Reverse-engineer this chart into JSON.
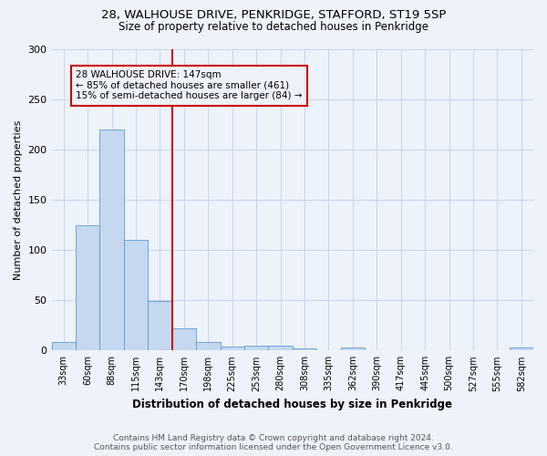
{
  "title_line1": "28, WALHOUSE DRIVE, PENKRIDGE, STAFFORD, ST19 5SP",
  "title_line2": "Size of property relative to detached houses in Penkridge",
  "xlabel": "Distribution of detached houses by size in Penkridge",
  "ylabel": "Number of detached properties",
  "bin_labels": [
    "33sqm",
    "60sqm",
    "88sqm",
    "115sqm",
    "143sqm",
    "170sqm",
    "198sqm",
    "225sqm",
    "253sqm",
    "280sqm",
    "308sqm",
    "335sqm",
    "362sqm",
    "390sqm",
    "417sqm",
    "445sqm",
    "500sqm",
    "527sqm",
    "555sqm",
    "582sqm"
  ],
  "bar_heights": [
    8,
    125,
    220,
    110,
    49,
    22,
    8,
    4,
    5,
    5,
    2,
    0,
    3,
    0,
    0,
    0,
    0,
    0,
    0,
    3
  ],
  "bar_color": "#c5d8f0",
  "bar_edgecolor": "#5b9bd5",
  "vline_x_idx": 4,
  "vline_color": "#cc0000",
  "annotation_text": "28 WALHOUSE DRIVE: 147sqm\n← 85% of detached houses are smaller (461)\n15% of semi-detached houses are larger (84) →",
  "ylim": [
    0,
    300
  ],
  "yticks": [
    0,
    50,
    100,
    150,
    200,
    250,
    300
  ],
  "footer_line1": "Contains HM Land Registry data © Crown copyright and database right 2024.",
  "footer_line2": "Contains public sector information licensed under the Open Government Licence v3.0.",
  "bg_color": "#eef2fb",
  "grid_color": "#c8d4ea"
}
